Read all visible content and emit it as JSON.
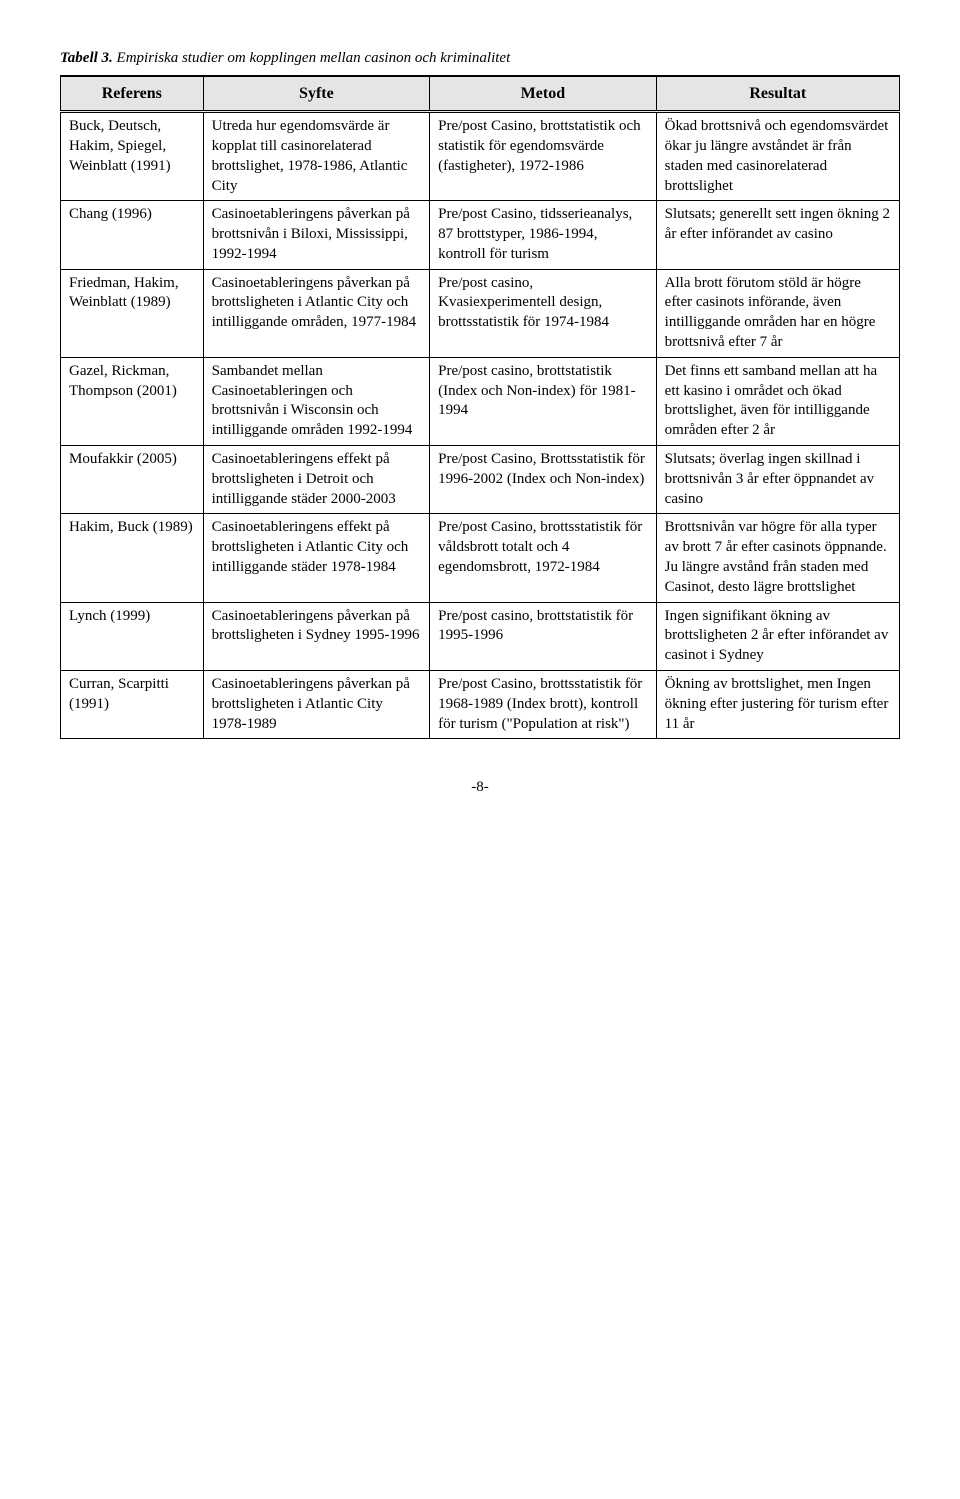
{
  "caption_label": "Tabell 3.",
  "caption_text": " Empiriska studier om kopplingen mellan casinon och kriminalitet",
  "headers": [
    "Referens",
    "Syfte",
    "Metod",
    "Resultat"
  ],
  "rows": [
    {
      "ref": "Buck, Deutsch, Hakim, Spiegel, Weinblatt (1991)",
      "syfte": "Utreda hur egendomsvärde är kopplat till casinorelaterad brottslighet, 1978-1986, Atlantic City",
      "metod": "Pre/post Casino, brottstatistik och statistik för egendomsvärde (fastigheter), 1972-1986",
      "resultat": "Ökad brottsnivå och egendomsvärdet ökar ju längre avståndet är från staden med casinorelaterad brottslighet"
    },
    {
      "ref": "Chang (1996)",
      "syfte": "Casinoetableringens påverkan på brottsnivån i Biloxi, Mississippi, 1992-1994",
      "metod": "Pre/post Casino, tidsserieanalys, 87 brottstyper, 1986-1994, kontroll för turism",
      "resultat": "Slutsats; generellt sett ingen ökning 2 år efter införandet av casino"
    },
    {
      "ref": "Friedman, Hakim, Weinblatt (1989)",
      "syfte": "Casinoetableringens påverkan på brottsligheten i Atlantic City och intilliggande områden, 1977-1984",
      "metod": "Pre/post casino, Kvasiexperimentell design, brottsstatistik för 1974-1984",
      "resultat": "Alla brott förutom stöld är högre efter casinots införande, även intilliggande områden har en högre brottsnivå efter 7 år"
    },
    {
      "ref": "Gazel, Rickman, Thompson (2001)",
      "syfte": "Sambandet mellan Casinoetableringen och brottsnivån i Wisconsin och intilliggande områden 1992-1994",
      "metod": "Pre/post casino, brottstatistik (Index och Non-index) för 1981-1994",
      "resultat": "Det finns ett samband mellan att ha ett kasino i området och ökad brottslighet, även för intilliggande områden efter 2 år"
    },
    {
      "ref": "Moufakkir (2005)",
      "syfte": "Casinoetableringens effekt på brottsligheten i Detroit och intilliggande städer 2000-2003",
      "metod": "Pre/post Casino, Brottsstatistik för 1996-2002 (Index och Non-index)",
      "resultat": "Slutsats; överlag ingen skillnad i brottsnivån 3 år efter öppnandet av casino"
    },
    {
      "ref": "Hakim, Buck (1989)",
      "syfte": "Casinoetableringens effekt på brottsligheten i Atlantic City och intilliggande städer 1978-1984",
      "metod": "Pre/post Casino, brottsstatistik för våldsbrott totalt och 4 egendomsbrott, 1972-1984",
      "resultat": "Brottsnivån var högre för alla typer av brott 7 år efter casinots öppnande. Ju längre avstånd från staden med Casinot, desto lägre brottslighet"
    },
    {
      "ref": "Lynch (1999)",
      "syfte": "Casinoetableringens påverkan på brottsligheten i Sydney 1995-1996",
      "metod": "Pre/post casino, brottstatistik för 1995-1996",
      "resultat": "Ingen signifikant ökning av brottsligheten 2 år efter införandet av casinot i Sydney"
    },
    {
      "ref": "Curran, Scarpitti (1991)",
      "syfte": "Casinoetableringens påverkan på brottsligheten i Atlantic City 1978-1989",
      "metod": "Pre/post Casino, brottsstatistik för 1968-1989 (Index brott), kontroll för turism (\"Population at risk\")",
      "resultat": "Ökning av brottslighet, men Ingen ökning efter justering för turism efter 11 år"
    }
  ],
  "page_number": "-8-"
}
